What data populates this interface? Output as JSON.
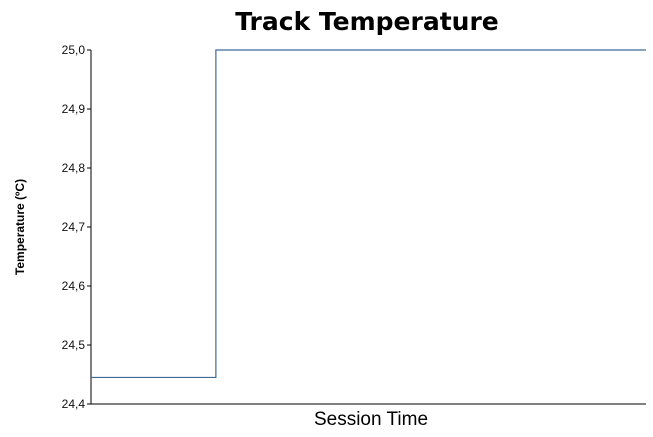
{
  "chart_data": {
    "type": "line",
    "title": "Track Temperature",
    "xlabel": "Session Time",
    "ylabel": "Temperature (ºC)",
    "ylim": [
      24.4,
      25.0
    ],
    "xlim": [
      0,
      100
    ],
    "yticks": [
      {
        "value": 25.0,
        "label": "25,0"
      },
      {
        "value": 24.9,
        "label": "24,9"
      },
      {
        "value": 24.8,
        "label": "24,8"
      },
      {
        "value": 24.7,
        "label": "24,7"
      },
      {
        "value": 24.6,
        "label": "24,6"
      },
      {
        "value": 24.5,
        "label": "24,5"
      },
      {
        "value": 24.4,
        "label": "24,4"
      }
    ],
    "grid": false,
    "legend": "none",
    "series": [
      {
        "color": "#3e6a96",
        "step": true,
        "x": [
          0,
          22.5,
          22.5,
          100
        ],
        "y": [
          24.445,
          24.445,
          25.0,
          25.0
        ]
      }
    ]
  }
}
